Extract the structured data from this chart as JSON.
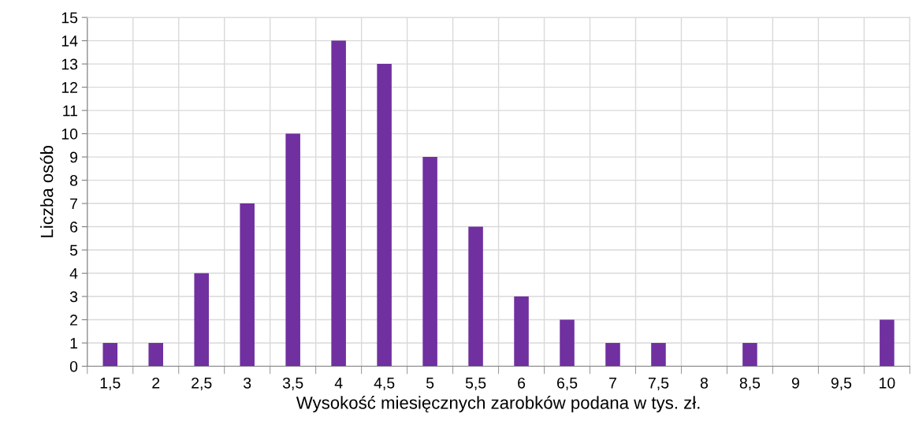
{
  "chart_data": {
    "type": "bar",
    "xlabel": "Wysokość miesięcznych zarobków podana w tys. zł.",
    "ylabel": "Liczba osób",
    "categories": [
      "1,5",
      "2",
      "2,5",
      "3",
      "3,5",
      "4",
      "4,5",
      "5",
      "5,5",
      "6",
      "6,5",
      "7",
      "7,5",
      "8",
      "8,5",
      "9",
      "9,5",
      "10"
    ],
    "values": [
      1,
      1,
      4,
      7,
      10,
      14,
      13,
      9,
      6,
      3,
      2,
      1,
      1,
      0,
      1,
      0,
      0,
      2
    ],
    "color": "#7030a0",
    "ylim": [
      0,
      15
    ],
    "yticks": [
      0,
      1,
      2,
      3,
      4,
      5,
      6,
      7,
      8,
      9,
      10,
      11,
      12,
      13,
      14,
      15
    ],
    "grid": true
  }
}
